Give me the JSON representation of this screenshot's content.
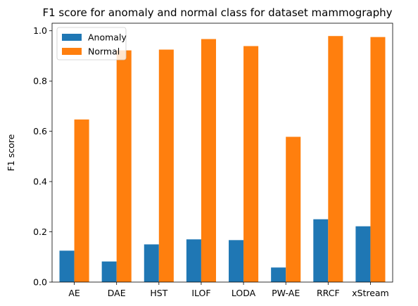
{
  "chart_data": {
    "type": "bar",
    "title": "F1 score for anomaly and normal class for dataset mammography",
    "xlabel": "",
    "ylabel": "F1 score",
    "categories": [
      "AE",
      "DAE",
      "HST",
      "ILOF",
      "LODA",
      "PW-AE",
      "RRCF",
      "xStream"
    ],
    "series": [
      {
        "name": "Anomaly",
        "color": "#1f77b4",
        "values": [
          0.125,
          0.082,
          0.15,
          0.17,
          0.167,
          0.058,
          0.25,
          0.222
        ]
      },
      {
        "name": "Normal",
        "color": "#ff7f0e",
        "values": [
          0.647,
          0.922,
          0.925,
          0.967,
          0.939,
          0.578,
          0.979,
          0.975
        ]
      }
    ],
    "ylim": [
      0,
      1.03
    ],
    "yticks": [
      0.0,
      0.2,
      0.4,
      0.6,
      0.8,
      1.0
    ],
    "ytick_labels": [
      "0.0",
      "0.2",
      "0.4",
      "0.6",
      "0.8",
      "1.0"
    ],
    "legend": {
      "position": "upper-left"
    },
    "grid": false
  }
}
